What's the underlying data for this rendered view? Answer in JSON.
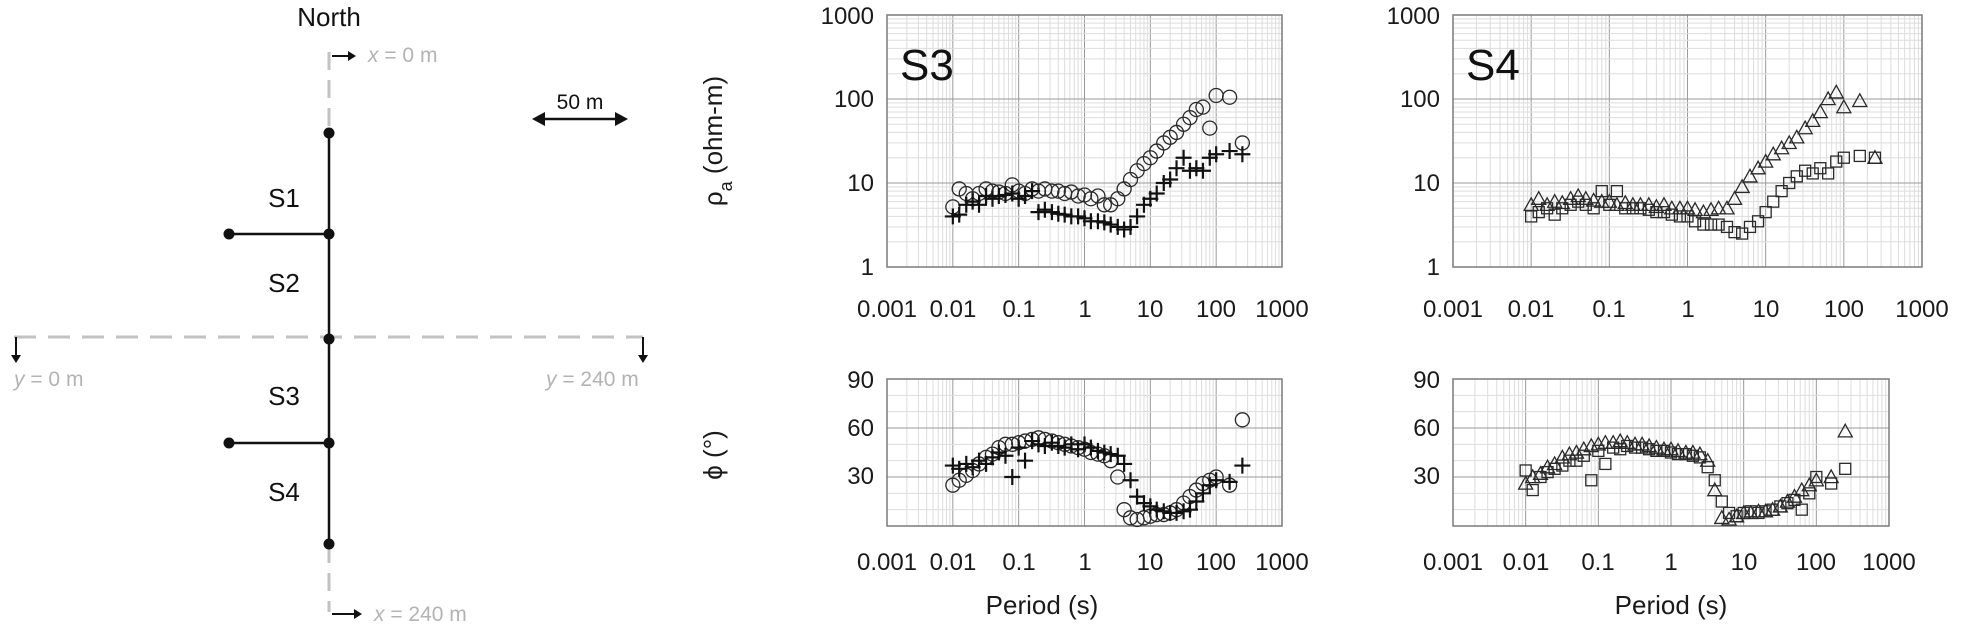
{
  "colors": {
    "line": "#111111",
    "grey_line": "#c2c2c2",
    "grey_text": "#b3b3b3",
    "grid_major": "#9a9a9a",
    "grid_minor": "#dddddd",
    "frame": "#7a7a7a",
    "marker": "#2a2a2a"
  },
  "map": {
    "north_label": "North",
    "scale_label": "50 m",
    "x_start_var": "x",
    "x_start_val": " = 0 m",
    "x_end_var": "x",
    "x_end_val": " = 240 m",
    "y_start_var": "y",
    "y_start_val": " = 0 m",
    "y_end_var": "y",
    "y_end_val": " = 240 m",
    "sites": [
      "S1",
      "S2",
      "S3",
      "S4"
    ]
  },
  "axes": {
    "rho_ylabel_main": "ρ",
    "rho_ylabel_sub": "a",
    "rho_ylabel_unit": " (ohm-m)",
    "phi_ylabel": "ϕ (°)",
    "xlabel": "Period (s)",
    "x_ticks": [
      "0.001",
      "0.01",
      "0.1",
      "1",
      "10",
      "100",
      "1000"
    ],
    "rho_ticks": [
      "1",
      "10",
      "100",
      "1000"
    ],
    "phi_ticks": [
      "30",
      "60",
      "90"
    ]
  },
  "chart_data": [
    {
      "type": "scatter",
      "title": "S3",
      "xlabel": "",
      "ylabel": "ρa (ohm-m)",
      "x_scale": "log",
      "y_scale": "log",
      "xlim": [
        0.001,
        1000
      ],
      "ylim": [
        1,
        1000
      ],
      "grid": true,
      "series": [
        {
          "marker": "circle",
          "x": [
            0.01,
            0.0125,
            0.016,
            0.02,
            0.025,
            0.032,
            0.04,
            0.05,
            0.063,
            0.08,
            0.1,
            0.125,
            0.16,
            0.2,
            0.25,
            0.32,
            0.4,
            0.5,
            0.63,
            0.8,
            1.0,
            1.25,
            1.6,
            2.0,
            2.5,
            3.2,
            4.0,
            5.0,
            6.3,
            8.0,
            10,
            12.5,
            16,
            20,
            25,
            32,
            40,
            50,
            63,
            80,
            100,
            160,
            250
          ],
          "y": [
            5.2,
            8.5,
            7.5,
            6.5,
            7.5,
            8.5,
            8.0,
            7.8,
            7.5,
            9.5,
            8.0,
            7.5,
            8.5,
            8.0,
            8.5,
            8.0,
            8.0,
            7.5,
            7.8,
            7.0,
            7.2,
            6.5,
            7.0,
            5.5,
            5.5,
            6.5,
            8.5,
            11,
            14,
            17,
            20,
            24,
            30,
            35,
            40,
            50,
            60,
            75,
            80,
            45,
            110,
            105,
            30
          ]
        },
        {
          "marker": "plus",
          "x": [
            0.01,
            0.0125,
            0.016,
            0.02,
            0.025,
            0.032,
            0.04,
            0.05,
            0.063,
            0.08,
            0.1,
            0.125,
            0.16,
            0.2,
            0.25,
            0.32,
            0.4,
            0.5,
            0.63,
            0.8,
            1.0,
            1.25,
            1.6,
            2.0,
            2.5,
            3.2,
            4.0,
            5.0,
            6.3,
            8.0,
            10,
            12.5,
            16,
            20,
            25,
            32,
            40,
            50,
            63,
            80,
            100,
            160,
            250
          ],
          "y": [
            4.0,
            4.2,
            5.5,
            6.0,
            5.5,
            7.0,
            6.5,
            7.0,
            7.2,
            7.5,
            6.5,
            7.0,
            8.0,
            4.5,
            4.8,
            4.5,
            4.3,
            4.2,
            4.0,
            4.0,
            3.8,
            3.5,
            3.5,
            3.4,
            3.2,
            3.0,
            2.8,
            3.0,
            4.0,
            5.5,
            6.5,
            7.5,
            10,
            11,
            15,
            20,
            14,
            15,
            14,
            20,
            22,
            24,
            22
          ]
        }
      ]
    },
    {
      "type": "scatter",
      "title": "S4",
      "xlabel": "",
      "ylabel": "",
      "x_scale": "log",
      "y_scale": "log",
      "xlim": [
        0.001,
        1000
      ],
      "ylim": [
        1,
        1000
      ],
      "grid": true,
      "series": [
        {
          "marker": "triangle",
          "x": [
            0.01,
            0.0125,
            0.016,
            0.02,
            0.025,
            0.032,
            0.04,
            0.05,
            0.063,
            0.08,
            0.1,
            0.125,
            0.16,
            0.2,
            0.25,
            0.32,
            0.4,
            0.5,
            0.63,
            0.8,
            1.0,
            1.25,
            1.6,
            2.0,
            2.5,
            3.2,
            4.0,
            5.0,
            6.3,
            8.0,
            10,
            12.5,
            16,
            20,
            25,
            32,
            40,
            50,
            63,
            80,
            100,
            160,
            250
          ],
          "y": [
            5.5,
            6.5,
            5.5,
            6.0,
            5.8,
            6.5,
            7.0,
            6.5,
            6.2,
            6.0,
            6.0,
            5.5,
            5.8,
            5.5,
            5.5,
            5.5,
            5.2,
            5.5,
            5.0,
            5.0,
            5.0,
            4.8,
            4.5,
            4.8,
            5.0,
            5.0,
            6.5,
            9.0,
            12,
            15,
            18,
            22,
            26,
            30,
            35,
            45,
            55,
            70,
            100,
            120,
            80,
            95,
            20
          ]
        },
        {
          "marker": "square",
          "x": [
            0.01,
            0.0125,
            0.016,
            0.02,
            0.025,
            0.032,
            0.04,
            0.05,
            0.063,
            0.08,
            0.1,
            0.125,
            0.16,
            0.2,
            0.25,
            0.32,
            0.4,
            0.5,
            0.63,
            0.8,
            1.0,
            1.25,
            1.6,
            2.0,
            2.5,
            3.2,
            4.0,
            5.0,
            6.3,
            8.0,
            10,
            12.5,
            16,
            20,
            25,
            32,
            40,
            50,
            63,
            80,
            100,
            160,
            250
          ],
          "y": [
            4.0,
            4.5,
            5.0,
            4.2,
            5.0,
            5.5,
            6.0,
            5.5,
            5.0,
            8.0,
            5.5,
            8.0,
            5.0,
            5.0,
            5.0,
            4.8,
            4.5,
            4.5,
            4.2,
            4.0,
            4.0,
            3.5,
            3.2,
            3.2,
            3.2,
            3.0,
            2.6,
            2.5,
            3.0,
            3.5,
            4.5,
            6.0,
            8.0,
            10,
            12,
            14,
            13,
            15,
            13,
            18,
            20,
            21,
            20
          ]
        }
      ]
    },
    {
      "type": "scatter",
      "title": "",
      "xlabel": "Period (s)",
      "ylabel": "ϕ (°)",
      "x_scale": "log",
      "y_scale": "linear",
      "xlim": [
        0.001,
        1000
      ],
      "ylim": [
        0,
        90
      ],
      "grid": true,
      "series": [
        {
          "marker": "circle",
          "x": [
            0.01,
            0.0125,
            0.016,
            0.02,
            0.025,
            0.032,
            0.04,
            0.05,
            0.063,
            0.08,
            0.1,
            0.125,
            0.16,
            0.2,
            0.25,
            0.32,
            0.4,
            0.5,
            0.63,
            0.8,
            1.0,
            1.25,
            1.6,
            2.0,
            2.5,
            3.2,
            4.0,
            5.0,
            6.3,
            8.0,
            10,
            12.5,
            16,
            20,
            25,
            32,
            40,
            50,
            63,
            80,
            100,
            160,
            250
          ],
          "y": [
            25,
            28,
            31,
            34,
            38,
            42,
            44,
            48,
            50,
            50,
            51,
            52,
            53,
            54,
            53,
            52,
            51,
            50,
            49,
            48,
            47,
            45,
            44,
            43,
            40,
            30,
            10,
            5,
            4,
            5,
            6,
            7,
            7,
            8,
            10,
            14,
            18,
            22,
            26,
            28,
            30,
            25,
            65
          ]
        },
        {
          "marker": "plus",
          "x": [
            0.01,
            0.0125,
            0.016,
            0.02,
            0.025,
            0.032,
            0.04,
            0.05,
            0.063,
            0.08,
            0.1,
            0.125,
            0.16,
            0.2,
            0.25,
            0.32,
            0.4,
            0.5,
            0.63,
            0.8,
            1.0,
            1.25,
            1.6,
            2.0,
            2.5,
            3.2,
            4.0,
            5.0,
            6.3,
            8.0,
            10,
            12.5,
            16,
            20,
            25,
            32,
            40,
            50,
            63,
            80,
            100,
            160,
            250
          ],
          "y": [
            37,
            35,
            38,
            36,
            40,
            38,
            42,
            45,
            43,
            30,
            48,
            40,
            52,
            50,
            49,
            51,
            49,
            48,
            50,
            47,
            50,
            48,
            46,
            45,
            44,
            43,
            38,
            28,
            18,
            14,
            12,
            10,
            9,
            8,
            8,
            9,
            10,
            15,
            20,
            25,
            28,
            27,
            37
          ]
        }
      ]
    },
    {
      "type": "scatter",
      "title": "",
      "xlabel": "Period (s)",
      "ylabel": "",
      "x_scale": "log",
      "y_scale": "linear",
      "xlim": [
        0.001,
        1000
      ],
      "ylim": [
        0,
        90
      ],
      "grid": true,
      "series": [
        {
          "marker": "triangle",
          "x": [
            0.01,
            0.0125,
            0.016,
            0.02,
            0.025,
            0.032,
            0.04,
            0.05,
            0.063,
            0.08,
            0.1,
            0.125,
            0.16,
            0.2,
            0.25,
            0.32,
            0.4,
            0.5,
            0.63,
            0.8,
            1.0,
            1.25,
            1.6,
            2.0,
            2.5,
            3.2,
            4.0,
            5.0,
            6.3,
            8.0,
            10,
            12.5,
            16,
            20,
            25,
            32,
            40,
            50,
            63,
            80,
            100,
            160,
            250
          ],
          "y": [
            26,
            30,
            32,
            36,
            38,
            42,
            44,
            45,
            47,
            49,
            50,
            51,
            51,
            52,
            51,
            50,
            50,
            49,
            48,
            47,
            47,
            46,
            45,
            45,
            44,
            40,
            22,
            5,
            4,
            6,
            8,
            8,
            9,
            9,
            10,
            12,
            15,
            18,
            22,
            25,
            28,
            30,
            58
          ]
        },
        {
          "marker": "square",
          "x": [
            0.01,
            0.0125,
            0.016,
            0.02,
            0.025,
            0.032,
            0.04,
            0.05,
            0.063,
            0.08,
            0.1,
            0.125,
            0.16,
            0.2,
            0.25,
            0.32,
            0.4,
            0.5,
            0.63,
            0.8,
            1.0,
            1.25,
            1.6,
            2.0,
            2.5,
            3.2,
            4.0,
            5.0,
            6.3,
            8.0,
            10,
            12.5,
            16,
            20,
            25,
            32,
            40,
            50,
            63,
            80,
            100,
            160,
            250
          ],
          "y": [
            34,
            22,
            30,
            33,
            35,
            37,
            40,
            40,
            43,
            28,
            46,
            38,
            48,
            47,
            49,
            48,
            48,
            47,
            46,
            46,
            45,
            44,
            44,
            43,
            42,
            36,
            28,
            15,
            8,
            6,
            8,
            9,
            8,
            9,
            10,
            12,
            14,
            16,
            10,
            20,
            30,
            26,
            35
          ]
        }
      ]
    }
  ]
}
